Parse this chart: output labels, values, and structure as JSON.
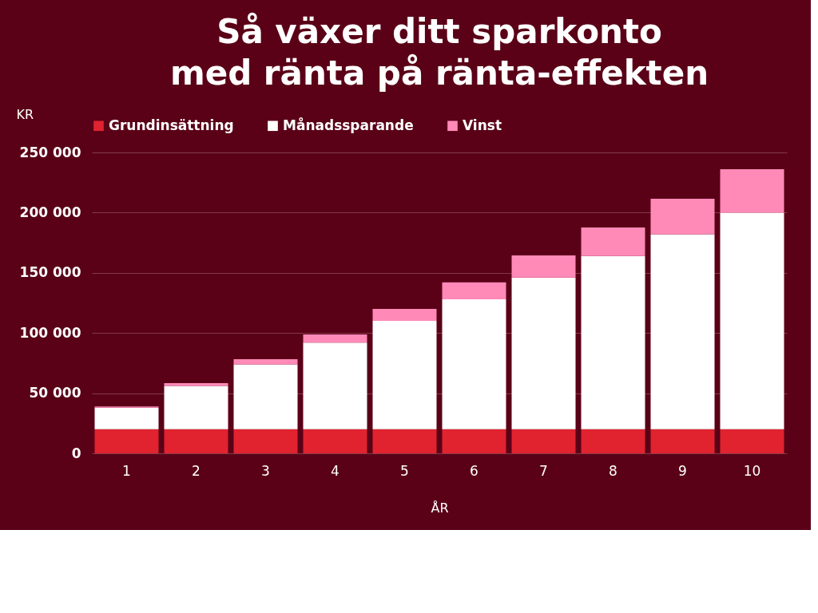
{
  "chart_data": {
    "type": "bar",
    "title": [
      "Så växer ditt sparkonto",
      "med ränta på ränta-effekten"
    ],
    "xlabel": "ÅR",
    "ylabel": "KR",
    "categories": [
      "1",
      "2",
      "3",
      "4",
      "5",
      "6",
      "7",
      "8",
      "9",
      "10"
    ],
    "stacked": true,
    "series": [
      {
        "name": "Grundinsättning",
        "color": "#e0232f",
        "values": [
          20000,
          20000,
          20000,
          20000,
          20000,
          20000,
          20000,
          20000,
          20000,
          20000
        ]
      },
      {
        "name": "Månadssparande",
        "color": "#ffffff",
        "values": [
          18000,
          36000,
          54000,
          72000,
          90000,
          108000,
          126000,
          144000,
          162000,
          180000
        ]
      },
      {
        "name": "Vinst",
        "color": "#ff8ab8",
        "values": [
          1000,
          2300,
          4200,
          6800,
          10000,
          14000,
          18400,
          23600,
          29500,
          36000
        ]
      }
    ],
    "ylim": [
      0,
      250000
    ],
    "yticks": [
      {
        "value": 0,
        "label": "0"
      },
      {
        "value": 50000,
        "label": "50 000"
      },
      {
        "value": 100000,
        "label": "100 000"
      },
      {
        "value": 150000,
        "label": "150 000"
      },
      {
        "value": 200000,
        "label": "200 000"
      },
      {
        "value": 250000,
        "label": "250 000"
      }
    ],
    "grid": "y",
    "legend": "top"
  }
}
